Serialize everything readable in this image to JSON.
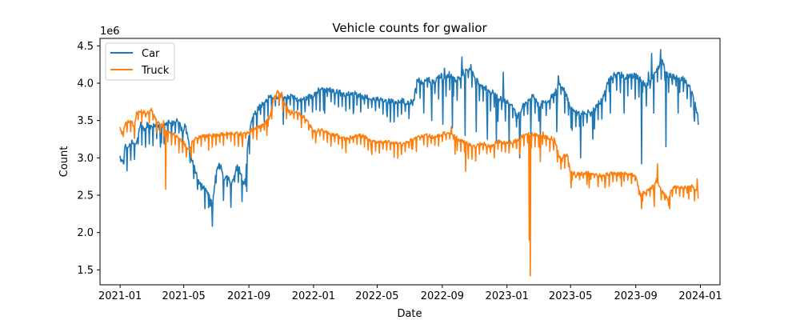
{
  "chart_data": {
    "type": "line",
    "title": "Vehicle counts for gwalior",
    "xlabel": "Date",
    "ylabel": "Count",
    "y_offset_label": "1e6",
    "y_scale_multiplier": 1000000,
    "xlim": [
      "2020-11-24",
      "2024-02-07"
    ],
    "ylim": [
      1.3,
      4.6
    ],
    "x_ticks": [
      "2021-01-01",
      "2021-05-01",
      "2021-09-01",
      "2022-01-01",
      "2022-05-01",
      "2022-09-01",
      "2023-01-01",
      "2023-05-01",
      "2023-09-01",
      "2024-01-01"
    ],
    "x_tick_labels": [
      "2021-01",
      "2021-05",
      "2021-09",
      "2022-01",
      "2022-05",
      "2022-09",
      "2023-01",
      "2023-05",
      "2023-09",
      "2024-01"
    ],
    "y_ticks": [
      1.5,
      2.0,
      2.5,
      3.0,
      3.5,
      4.0,
      4.5
    ],
    "y_tick_labels": [
      "1.5",
      "2.0",
      "2.5",
      "3.0",
      "3.5",
      "4.0",
      "4.5"
    ],
    "grid": false,
    "legend": {
      "placement": "top-left"
    },
    "series": [
      {
        "name": "Car",
        "color": "#1f77b4",
        "points": [
          [
            "2021-01-01",
            3.0
          ],
          [
            "2021-01-05",
            2.95
          ],
          [
            "2021-01-10",
            3.15
          ],
          [
            "2021-01-15",
            3.1
          ],
          [
            "2021-01-20",
            3.2
          ],
          [
            "2021-02-01",
            3.2
          ],
          [
            "2021-02-08",
            3.45
          ],
          [
            "2021-02-15",
            3.4
          ],
          [
            "2021-02-22",
            3.45
          ],
          [
            "2021-03-01",
            3.4
          ],
          [
            "2021-03-10",
            3.45
          ],
          [
            "2021-03-18",
            3.38
          ],
          [
            "2021-03-25",
            3.45
          ],
          [
            "2021-04-01",
            3.5
          ],
          [
            "2021-04-10",
            3.45
          ],
          [
            "2021-04-20",
            3.5
          ],
          [
            "2021-04-28",
            3.35
          ],
          [
            "2021-05-05",
            3.45
          ],
          [
            "2021-05-12",
            3.1
          ],
          [
            "2021-05-20",
            2.9
          ],
          [
            "2021-05-28",
            2.7
          ],
          [
            "2021-06-05",
            2.62
          ],
          [
            "2021-06-12",
            2.55
          ],
          [
            "2021-06-19",
            2.48
          ],
          [
            "2021-06-24",
            2.35
          ],
          [
            "2021-07-01",
            2.8
          ],
          [
            "2021-07-08",
            2.95
          ],
          [
            "2021-07-15",
            2.7
          ],
          [
            "2021-07-22",
            2.8
          ],
          [
            "2021-07-29",
            2.6
          ],
          [
            "2021-08-05",
            2.8
          ],
          [
            "2021-08-12",
            2.9
          ],
          [
            "2021-08-19",
            2.72
          ],
          [
            "2021-08-24",
            2.65
          ],
          [
            "2021-08-29",
            3.1
          ],
          [
            "2021-09-01",
            3.3
          ],
          [
            "2021-09-08",
            3.55
          ],
          [
            "2021-09-15",
            3.62
          ],
          [
            "2021-09-22",
            3.7
          ],
          [
            "2021-10-01",
            3.72
          ],
          [
            "2021-10-10",
            3.82
          ],
          [
            "2021-10-20",
            3.78
          ],
          [
            "2021-11-01",
            3.85
          ],
          [
            "2021-11-10",
            3.8
          ],
          [
            "2021-11-20",
            3.82
          ],
          [
            "2021-12-01",
            3.8
          ],
          [
            "2021-12-15",
            3.78
          ],
          [
            "2022-01-01",
            3.85
          ],
          [
            "2022-01-10",
            3.9
          ],
          [
            "2022-01-20",
            3.92
          ],
          [
            "2022-02-01",
            3.9
          ],
          [
            "2022-02-15",
            3.88
          ],
          [
            "2022-03-01",
            3.85
          ],
          [
            "2022-03-15",
            3.88
          ],
          [
            "2022-04-01",
            3.82
          ],
          [
            "2022-04-15",
            3.8
          ],
          [
            "2022-05-01",
            3.78
          ],
          [
            "2022-05-15",
            3.76
          ],
          [
            "2022-06-01",
            3.75
          ],
          [
            "2022-06-15",
            3.77
          ],
          [
            "2022-07-01",
            3.72
          ],
          [
            "2022-07-10",
            3.8
          ],
          [
            "2022-07-15",
            4.05
          ],
          [
            "2022-07-25",
            4.0
          ],
          [
            "2022-08-05",
            4.05
          ],
          [
            "2022-08-15",
            4.0
          ],
          [
            "2022-08-25",
            4.1
          ],
          [
            "2022-09-05",
            4.08
          ],
          [
            "2022-09-15",
            4.12
          ],
          [
            "2022-09-25",
            4.05
          ],
          [
            "2022-10-01",
            4.05
          ],
          [
            "2022-10-10",
            4.15
          ],
          [
            "2022-10-20",
            4.2
          ],
          [
            "2022-11-01",
            4.1
          ],
          [
            "2022-11-15",
            3.95
          ],
          [
            "2022-12-01",
            3.9
          ],
          [
            "2022-12-15",
            3.8
          ],
          [
            "2023-01-01",
            3.75
          ],
          [
            "2023-01-10",
            3.7
          ],
          [
            "2023-01-20",
            3.55
          ],
          [
            "2023-02-01",
            3.7
          ],
          [
            "2023-02-10",
            3.75
          ],
          [
            "2023-02-20",
            3.85
          ],
          [
            "2023-03-01",
            3.7
          ],
          [
            "2023-03-15",
            3.75
          ],
          [
            "2023-04-01",
            3.85
          ],
          [
            "2023-04-10",
            4.0
          ],
          [
            "2023-04-20",
            3.9
          ],
          [
            "2023-05-01",
            3.65
          ],
          [
            "2023-05-15",
            3.58
          ],
          [
            "2023-06-01",
            3.6
          ],
          [
            "2023-06-15",
            3.65
          ],
          [
            "2023-07-01",
            3.8
          ],
          [
            "2023-07-10",
            4.0
          ],
          [
            "2023-07-20",
            4.1
          ],
          [
            "2023-08-01",
            4.12
          ],
          [
            "2023-08-15",
            4.08
          ],
          [
            "2023-09-01",
            4.1
          ],
          [
            "2023-09-10",
            4.05
          ],
          [
            "2023-09-20",
            3.95
          ],
          [
            "2023-10-01",
            4.05
          ],
          [
            "2023-10-10",
            4.15
          ],
          [
            "2023-10-20",
            4.3
          ],
          [
            "2023-11-01",
            4.1
          ],
          [
            "2023-11-15",
            4.08
          ],
          [
            "2023-12-01",
            4.05
          ],
          [
            "2023-12-15",
            3.9
          ],
          [
            "2023-12-28",
            3.55
          ]
        ],
        "dips": [
          [
            "2021-01-08",
            2.92
          ],
          [
            "2021-03-20",
            3.2
          ],
          [
            "2021-06-20",
            2.35
          ],
          [
            "2021-08-28",
            2.55
          ],
          [
            "2021-11-05",
            3.45
          ],
          [
            "2022-01-22",
            3.6
          ],
          [
            "2022-03-18",
            3.65
          ],
          [
            "2022-05-20",
            3.55
          ],
          [
            "2022-07-28",
            3.6
          ],
          [
            "2022-08-12",
            3.5
          ],
          [
            "2022-09-02",
            3.45
          ],
          [
            "2022-09-20",
            3.4
          ],
          [
            "2022-10-14",
            3.3
          ],
          [
            "2022-11-04",
            3.35
          ],
          [
            "2022-11-25",
            3.25
          ],
          [
            "2022-12-12",
            3.2
          ],
          [
            "2023-01-05",
            3.15
          ],
          [
            "2023-01-25",
            3.0
          ],
          [
            "2023-02-15",
            3.3
          ],
          [
            "2023-03-05",
            3.3
          ],
          [
            "2023-04-05",
            3.35
          ],
          [
            "2023-05-02",
            3.4
          ],
          [
            "2023-05-20",
            3.0
          ],
          [
            "2023-06-12",
            3.25
          ],
          [
            "2023-07-15",
            3.6
          ],
          [
            "2023-08-10",
            3.6
          ],
          [
            "2023-09-12",
            2.92
          ],
          [
            "2023-10-05",
            3.6
          ],
          [
            "2023-10-28",
            3.15
          ],
          [
            "2023-11-20",
            3.6
          ],
          [
            "2023-12-20",
            3.55
          ]
        ],
        "peaks": [
          [
            "2022-09-05",
            4.2
          ],
          [
            "2022-10-08",
            4.35
          ],
          [
            "2022-10-25",
            4.25
          ],
          [
            "2022-12-25",
            4.15
          ],
          [
            "2023-04-08",
            4.1
          ],
          [
            "2023-10-18",
            4.45
          ],
          [
            "2023-10-01",
            4.4
          ],
          [
            "2023-09-25",
            4.15
          ]
        ]
      },
      {
        "name": "Truck",
        "color": "#ff7f0e",
        "points": [
          [
            "2021-01-01",
            3.4
          ],
          [
            "2021-01-05",
            3.3
          ],
          [
            "2021-01-10",
            3.45
          ],
          [
            "2021-01-20",
            3.5
          ],
          [
            "2021-01-28",
            3.42
          ],
          [
            "2021-02-01",
            3.6
          ],
          [
            "2021-02-10",
            3.62
          ],
          [
            "2021-02-20",
            3.6
          ],
          [
            "2021-03-01",
            3.65
          ],
          [
            "2021-03-10",
            3.5
          ],
          [
            "2021-03-20",
            3.45
          ],
          [
            "2021-03-25",
            3.4
          ],
          [
            "2021-04-01",
            3.35
          ],
          [
            "2021-04-15",
            3.3
          ],
          [
            "2021-05-01",
            3.2
          ],
          [
            "2021-05-10",
            3.1
          ],
          [
            "2021-05-20",
            3.25
          ],
          [
            "2021-06-01",
            3.28
          ],
          [
            "2021-06-15",
            3.3
          ],
          [
            "2021-07-01",
            3.3
          ],
          [
            "2021-07-15",
            3.32
          ],
          [
            "2021-08-01",
            3.33
          ],
          [
            "2021-08-15",
            3.32
          ],
          [
            "2021-09-01",
            3.35
          ],
          [
            "2021-09-15",
            3.4
          ],
          [
            "2021-10-01",
            3.45
          ],
          [
            "2021-10-10",
            3.55
          ],
          [
            "2021-10-20",
            3.85
          ],
          [
            "2021-10-28",
            3.88
          ],
          [
            "2021-11-05",
            3.75
          ],
          [
            "2021-11-15",
            3.62
          ],
          [
            "2021-12-01",
            3.6
          ],
          [
            "2021-12-15",
            3.55
          ],
          [
            "2022-01-01",
            3.35
          ],
          [
            "2022-01-15",
            3.38
          ],
          [
            "2022-02-01",
            3.32
          ],
          [
            "2022-02-15",
            3.3
          ],
          [
            "2022-03-01",
            3.25
          ],
          [
            "2022-03-15",
            3.28
          ],
          [
            "2022-04-01",
            3.3
          ],
          [
            "2022-04-15",
            3.25
          ],
          [
            "2022-05-01",
            3.2
          ],
          [
            "2022-05-15",
            3.22
          ],
          [
            "2022-06-01",
            3.2
          ],
          [
            "2022-06-15",
            3.18
          ],
          [
            "2022-07-01",
            3.22
          ],
          [
            "2022-07-15",
            3.28
          ],
          [
            "2022-08-01",
            3.3
          ],
          [
            "2022-08-15",
            3.28
          ],
          [
            "2022-09-01",
            3.32
          ],
          [
            "2022-09-15",
            3.35
          ],
          [
            "2022-10-01",
            3.25
          ],
          [
            "2022-10-15",
            3.2
          ],
          [
            "2022-11-01",
            3.15
          ],
          [
            "2022-11-15",
            3.2
          ],
          [
            "2022-12-01",
            3.15
          ],
          [
            "2022-12-15",
            3.22
          ],
          [
            "2023-01-01",
            3.2
          ],
          [
            "2023-01-15",
            3.22
          ],
          [
            "2023-02-01",
            3.3
          ],
          [
            "2023-02-14",
            3.32
          ],
          [
            "2023-03-01",
            3.3
          ],
          [
            "2023-03-15",
            3.28
          ],
          [
            "2023-04-01",
            3.25
          ],
          [
            "2023-04-10",
            3.0
          ],
          [
            "2023-04-25",
            3.05
          ],
          [
            "2023-05-01",
            2.8
          ],
          [
            "2023-05-15",
            2.78
          ],
          [
            "2023-06-01",
            2.8
          ],
          [
            "2023-06-15",
            2.78
          ],
          [
            "2023-07-01",
            2.75
          ],
          [
            "2023-07-15",
            2.8
          ],
          [
            "2023-08-01",
            2.78
          ],
          [
            "2023-08-15",
            2.8
          ],
          [
            "2023-09-01",
            2.75
          ],
          [
            "2023-09-10",
            2.5
          ],
          [
            "2023-09-20",
            2.55
          ],
          [
            "2023-10-01",
            2.6
          ],
          [
            "2023-10-10",
            2.7
          ],
          [
            "2023-10-20",
            2.55
          ],
          [
            "2023-11-01",
            2.45
          ],
          [
            "2023-11-10",
            2.6
          ],
          [
            "2023-11-20",
            2.62
          ],
          [
            "2023-12-01",
            2.6
          ],
          [
            "2023-12-15",
            2.62
          ],
          [
            "2023-12-28",
            2.55
          ]
        ],
        "dips": [
          [
            "2021-03-28",
            2.58
          ],
          [
            "2021-05-15",
            3.0
          ],
          [
            "2021-08-20",
            3.15
          ],
          [
            "2021-10-05",
            3.3
          ],
          [
            "2022-01-05",
            3.2
          ],
          [
            "2022-04-20",
            3.1
          ],
          [
            "2022-07-05",
            3.12
          ],
          [
            "2022-09-25",
            3.05
          ],
          [
            "2022-10-15",
            2.82
          ],
          [
            "2022-12-08",
            3.0
          ],
          [
            "2023-01-25",
            3.05
          ],
          [
            "2023-02-14",
            1.42
          ],
          [
            "2023-03-05",
            2.95
          ],
          [
            "2023-04-15",
            2.95
          ],
          [
            "2023-05-02",
            2.6
          ],
          [
            "2023-06-05",
            2.6
          ],
          [
            "2023-07-05",
            2.6
          ],
          [
            "2023-08-05",
            2.62
          ],
          [
            "2023-09-12",
            2.32
          ],
          [
            "2023-10-06",
            2.35
          ],
          [
            "2023-11-04",
            2.32
          ],
          [
            "2023-12-10",
            2.45
          ]
        ],
        "peaks": [
          [
            "2021-03-24",
            3.5
          ],
          [
            "2021-10-25",
            3.9
          ],
          [
            "2021-11-02",
            3.88
          ],
          [
            "2022-09-18",
            3.42
          ],
          [
            "2023-02-12",
            1.9
          ],
          [
            "2023-03-10",
            3.35
          ],
          [
            "2023-10-12",
            2.92
          ],
          [
            "2023-12-26",
            2.72
          ]
        ]
      }
    ]
  }
}
